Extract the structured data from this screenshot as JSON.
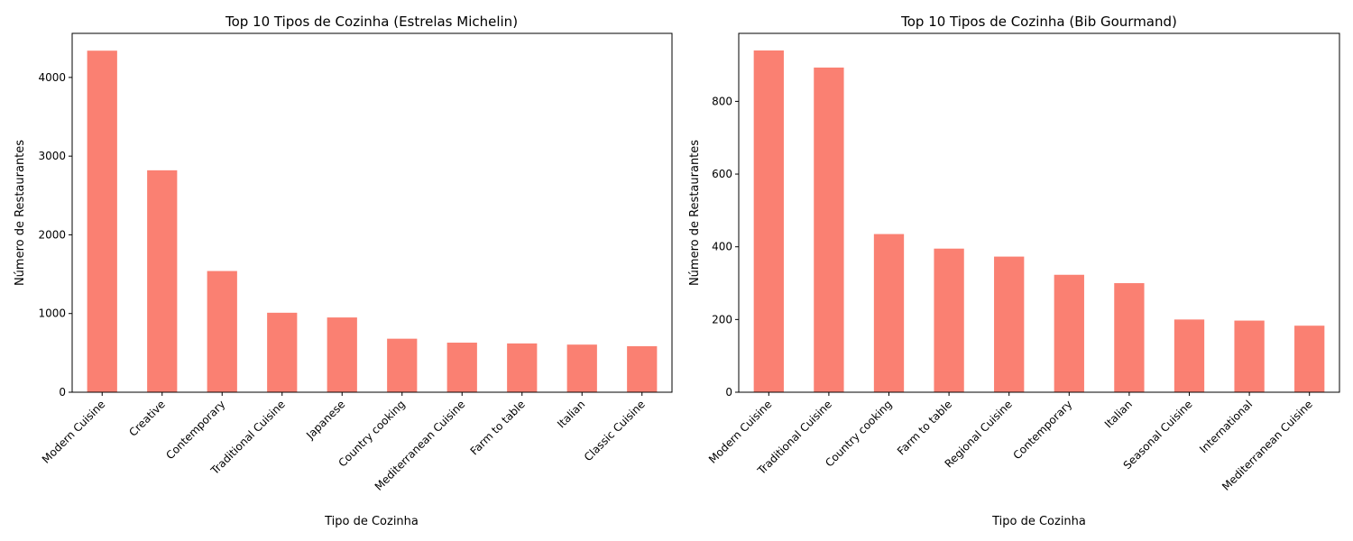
{
  "bar_color": "#fa8072",
  "chart_data": [
    {
      "type": "bar",
      "title": "Top 10 Tipos de Cozinha (Estrelas Michelin)",
      "xlabel": "Tipo de Cozinha",
      "ylabel": "Número de Restaurantes",
      "categories": [
        "Modern Cuisine",
        "Creative",
        "Contemporary",
        "Traditional Cuisine",
        "Japanese",
        "Country cooking",
        "Mediterranean Cuisine",
        "Farm to table",
        "Italian",
        "Classic Cuisine"
      ],
      "values": [
        4340,
        2820,
        1540,
        1010,
        950,
        680,
        630,
        620,
        605,
        585
      ],
      "yticks": [
        0,
        1000,
        2000,
        3000,
        4000
      ],
      "ylim": [
        0,
        4560
      ],
      "grid": false,
      "legend": "none"
    },
    {
      "type": "bar",
      "title": "Top 10 Tipos de Cozinha (Bib Gourmand)",
      "xlabel": "Tipo de Cozinha",
      "ylabel": "Número de Restaurantes",
      "categories": [
        "Modern Cuisine",
        "Traditional Cuisine",
        "Country cooking",
        "Farm to table",
        "Regional Cuisine",
        "Contemporary",
        "Italian",
        "Seasonal Cuisine",
        "International",
        "Mediterranean Cuisine"
      ],
      "values": [
        940,
        893,
        435,
        395,
        373,
        323,
        300,
        200,
        197,
        183
      ],
      "yticks": [
        0,
        200,
        400,
        600,
        800
      ],
      "ylim": [
        0,
        987
      ],
      "grid": false,
      "legend": "none"
    }
  ]
}
